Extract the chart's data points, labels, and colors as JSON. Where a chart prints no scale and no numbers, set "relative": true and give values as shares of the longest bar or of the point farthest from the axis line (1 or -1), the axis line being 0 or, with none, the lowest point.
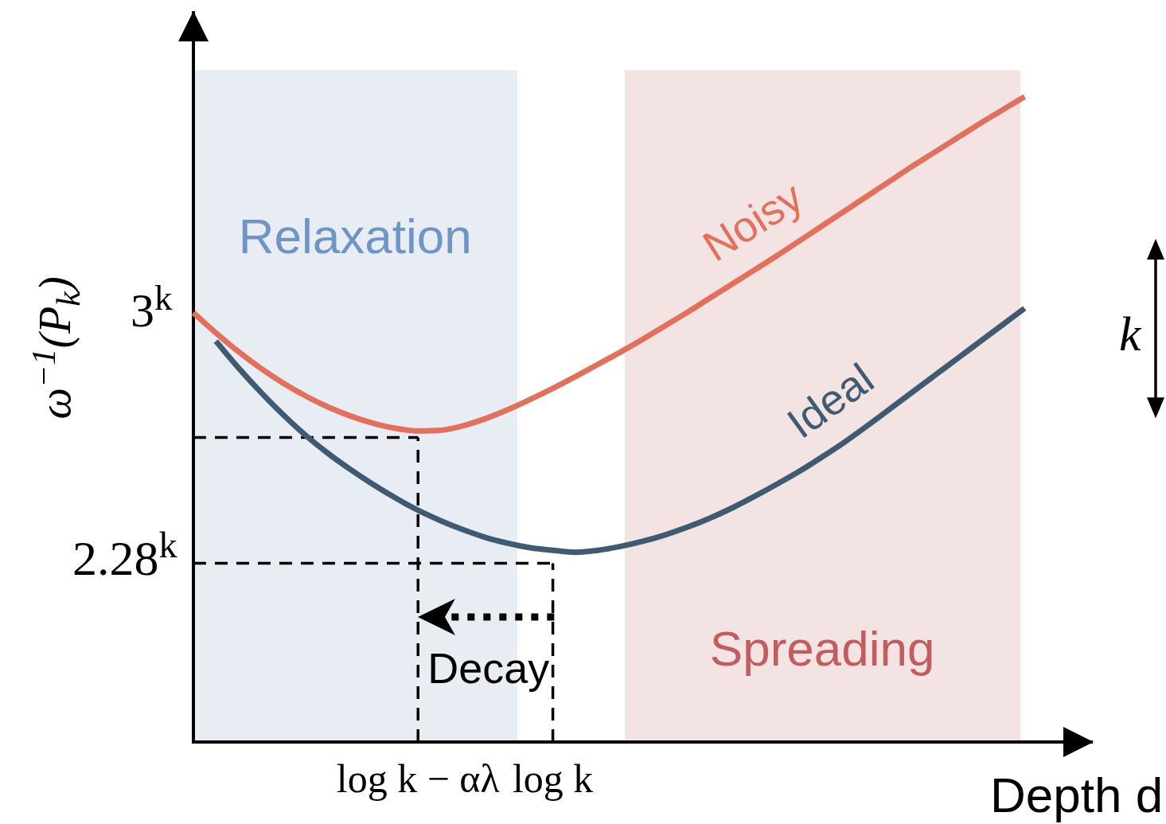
{
  "chart_data": {
    "type": "line",
    "relative": true,
    "xlabel": "Depth d",
    "ylabel": "ω$^{−1}$(P$_{k}$)",
    "categories": [
      null,
      null,
      null,
      null,
      null,
      null,
      null,
      null,
      null,
      null,
      "log k − αλ",
      null,
      null,
      null,
      null,
      null,
      "log k",
      null,
      null,
      null,
      null,
      null,
      null,
      null,
      null,
      null,
      null,
      null,
      null,
      null,
      null,
      null,
      null,
      null,
      null,
      null,
      null,
      null,
      null,
      null,
      null
    ],
    "series": [
      {
        "name": "Noisy",
        "color": "#e2705a",
        "values": [
          0.665,
          0.634,
          0.605,
          0.579,
          0.556,
          0.536,
          0.519,
          0.505,
          0.494,
          0.486,
          0.482,
          0.483,
          0.49,
          0.501,
          0.515,
          0.531,
          0.548,
          0.566,
          0.585,
          0.604,
          0.624,
          0.645,
          0.666,
          0.688,
          0.71,
          0.732,
          0.754,
          0.777,
          0.8,
          0.823,
          0.846,
          0.869,
          0.892,
          0.914,
          0.936,
          0.958,
          0.979,
          1,
          null,
          null,
          null
        ]
      },
      {
        "name": "Ideal",
        "color": "#3f5b71",
        "values": [
          null,
          0.621,
          0.58,
          0.542,
          0.507,
          0.475,
          0.447,
          0.422,
          0.399,
          0.378,
          0.359,
          0.343,
          0.329,
          0.317,
          0.308,
          0.301,
          0.297,
          0.294,
          0.297,
          0.303,
          0.311,
          0.321,
          0.333,
          0.347,
          0.363,
          0.381,
          0.4,
          0.42,
          0.442,
          0.465,
          0.49,
          0.516,
          0.542,
          0.568,
          0.594,
          0.62,
          0.646,
          0.672,
          null,
          null,
          null
        ]
      }
    ],
    "ref_lines": [
      {
        "axis": "y",
        "value": 0.472,
        "color": "#000000",
        "line_style": "dashed"
      },
      {
        "axis": "y",
        "value": 0.277,
        "label": "2.28$^{k}$",
        "color": "#000000",
        "line_style": "dashed"
      },
      {
        "axis": "x",
        "value": "log k − αλ",
        "color": "#000000",
        "line_style": "dashed"
      },
      {
        "axis": "x",
        "value": "log k",
        "color": "#000000",
        "line_style": "dashed"
      }
    ],
    "annotations": [
      "Relaxation",
      "3$^{k}$",
      "k",
      "Decay",
      "Spreading"
    ]
  }
}
